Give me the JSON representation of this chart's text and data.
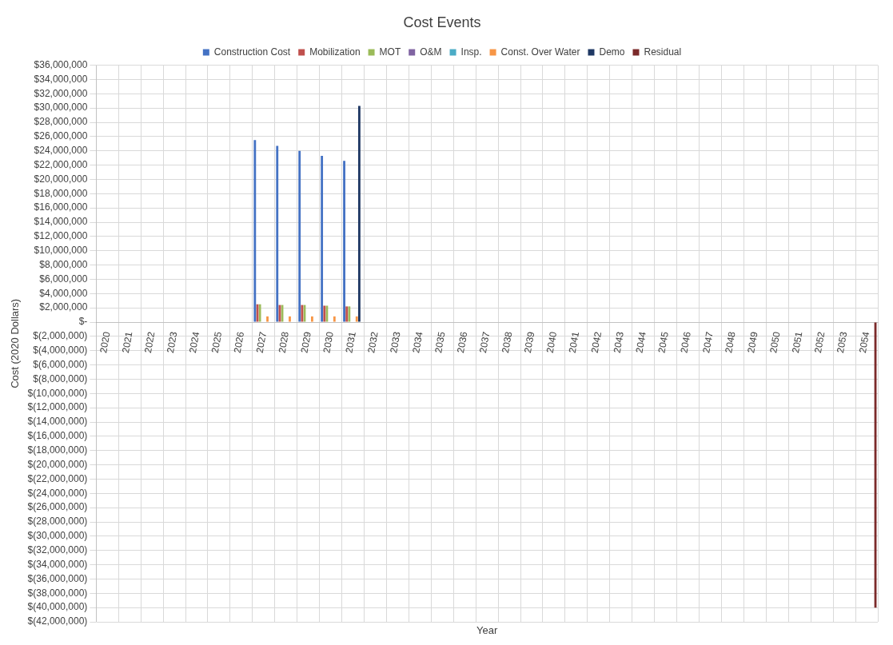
{
  "chart_data": {
    "type": "bar",
    "title": "Cost Events",
    "xlabel": "Year",
    "ylabel": "Cost (2020 Dollars)",
    "legend": "top",
    "grid": true,
    "categories": [
      "2020",
      "2021",
      "2022",
      "2023",
      "2024",
      "2025",
      "2026",
      "2027",
      "2028",
      "2029",
      "2030",
      "2031",
      "2032",
      "2033",
      "2034",
      "2035",
      "2036",
      "2037",
      "2038",
      "2039",
      "2040",
      "2041",
      "2042",
      "2043",
      "2044",
      "2045",
      "2046",
      "2047",
      "2048",
      "2049",
      "2050",
      "2051",
      "2052",
      "2053",
      "2054"
    ],
    "series": [
      {
        "name": "Construction Cost",
        "color": "#4472c4",
        "values": [
          0,
          0,
          0,
          0,
          0,
          0,
          0,
          25500000,
          24700000,
          24000000,
          23300000,
          22600000,
          0,
          0,
          0,
          0,
          0,
          0,
          0,
          0,
          0,
          0,
          0,
          0,
          0,
          0,
          0,
          0,
          0,
          0,
          0,
          0,
          0,
          0,
          0
        ]
      },
      {
        "name": "Mobilization",
        "color": "#c0504d",
        "values": [
          0,
          0,
          0,
          0,
          0,
          0,
          0,
          2500000,
          2400000,
          2400000,
          2300000,
          2200000,
          0,
          0,
          0,
          0,
          0,
          0,
          0,
          0,
          0,
          0,
          0,
          0,
          0,
          0,
          0,
          0,
          0,
          0,
          0,
          0,
          0,
          0,
          0
        ]
      },
      {
        "name": "MOT",
        "color": "#9bbb59",
        "values": [
          0,
          0,
          0,
          0,
          0,
          0,
          0,
          2500000,
          2400000,
          2400000,
          2300000,
          2200000,
          0,
          0,
          0,
          0,
          0,
          0,
          0,
          0,
          0,
          0,
          0,
          0,
          0,
          0,
          0,
          0,
          0,
          0,
          0,
          0,
          0,
          0,
          0
        ]
      },
      {
        "name": "O&M",
        "color": "#8064a2",
        "values": [
          0,
          0,
          0,
          0,
          0,
          0,
          0,
          0,
          0,
          0,
          0,
          0,
          0,
          0,
          0,
          0,
          0,
          0,
          0,
          0,
          0,
          0,
          0,
          0,
          0,
          0,
          0,
          0,
          0,
          0,
          0,
          0,
          0,
          0,
          0
        ]
      },
      {
        "name": "Insp.",
        "color": "#4bacc6",
        "values": [
          0,
          0,
          0,
          0,
          0,
          0,
          0,
          0,
          0,
          0,
          0,
          0,
          0,
          0,
          0,
          0,
          0,
          0,
          0,
          0,
          0,
          0,
          0,
          0,
          0,
          0,
          0,
          0,
          0,
          0,
          0,
          0,
          0,
          0,
          0
        ]
      },
      {
        "name": "Const. Over Water",
        "color": "#f79646",
        "values": [
          0,
          0,
          0,
          0,
          0,
          0,
          0,
          800000,
          800000,
          800000,
          800000,
          800000,
          0,
          0,
          0,
          0,
          0,
          0,
          0,
          0,
          0,
          0,
          0,
          0,
          0,
          0,
          0,
          0,
          0,
          0,
          0,
          0,
          0,
          0,
          0
        ]
      },
      {
        "name": "Demo",
        "color": "#1f3864",
        "values": [
          0,
          0,
          0,
          0,
          0,
          0,
          0,
          0,
          0,
          0,
          0,
          30300000,
          0,
          0,
          0,
          0,
          0,
          0,
          0,
          0,
          0,
          0,
          0,
          0,
          0,
          0,
          0,
          0,
          0,
          0,
          0,
          0,
          0,
          0,
          0
        ]
      },
      {
        "name": "Residual",
        "color": "#7b2a2a",
        "values": [
          0,
          0,
          0,
          0,
          0,
          0,
          0,
          0,
          0,
          0,
          0,
          0,
          0,
          0,
          0,
          0,
          0,
          0,
          0,
          0,
          0,
          0,
          0,
          0,
          0,
          0,
          0,
          0,
          0,
          0,
          0,
          0,
          0,
          0,
          -40000000
        ]
      }
    ],
    "ylim": [
      -42000000,
      36000000
    ],
    "yticks": [
      {
        "value": -42000000,
        "label": "$(42,000,000)"
      },
      {
        "value": -40000000,
        "label": "$(40,000,000)"
      },
      {
        "value": -38000000,
        "label": "$(38,000,000)"
      },
      {
        "value": -36000000,
        "label": "$(36,000,000)"
      },
      {
        "value": -34000000,
        "label": "$(34,000,000)"
      },
      {
        "value": -32000000,
        "label": "$(32,000,000)"
      },
      {
        "value": -30000000,
        "label": "$(30,000,000)"
      },
      {
        "value": -28000000,
        "label": "$(28,000,000)"
      },
      {
        "value": -26000000,
        "label": "$(26,000,000)"
      },
      {
        "value": -24000000,
        "label": "$(24,000,000)"
      },
      {
        "value": -22000000,
        "label": "$(22,000,000)"
      },
      {
        "value": -20000000,
        "label": "$(20,000,000)"
      },
      {
        "value": -18000000,
        "label": "$(18,000,000)"
      },
      {
        "value": -16000000,
        "label": "$(16,000,000)"
      },
      {
        "value": -14000000,
        "label": "$(14,000,000)"
      },
      {
        "value": -12000000,
        "label": "$(12,000,000)"
      },
      {
        "value": -10000000,
        "label": "$(10,000,000)"
      },
      {
        "value": -8000000,
        "label": "$(8,000,000)"
      },
      {
        "value": -6000000,
        "label": "$(6,000,000)"
      },
      {
        "value": -4000000,
        "label": "$(4,000,000)"
      },
      {
        "value": -2000000,
        "label": "$(2,000,000)"
      },
      {
        "value": 0,
        "label": "$-"
      },
      {
        "value": 2000000,
        "label": "$2,000,000"
      },
      {
        "value": 4000000,
        "label": "$4,000,000"
      },
      {
        "value": 6000000,
        "label": "$6,000,000"
      },
      {
        "value": 8000000,
        "label": "$8,000,000"
      },
      {
        "value": 10000000,
        "label": "$10,000,000"
      },
      {
        "value": 12000000,
        "label": "$12,000,000"
      },
      {
        "value": 14000000,
        "label": "$14,000,000"
      },
      {
        "value": 16000000,
        "label": "$16,000,000"
      },
      {
        "value": 18000000,
        "label": "$18,000,000"
      },
      {
        "value": 20000000,
        "label": "$20,000,000"
      },
      {
        "value": 22000000,
        "label": "$22,000,000"
      },
      {
        "value": 24000000,
        "label": "$24,000,000"
      },
      {
        "value": 26000000,
        "label": "$26,000,000"
      },
      {
        "value": 28000000,
        "label": "$28,000,000"
      },
      {
        "value": 30000000,
        "label": "$30,000,000"
      },
      {
        "value": 32000000,
        "label": "$32,000,000"
      },
      {
        "value": 34000000,
        "label": "$34,000,000"
      },
      {
        "value": 36000000,
        "label": "$36,000,000"
      }
    ]
  }
}
